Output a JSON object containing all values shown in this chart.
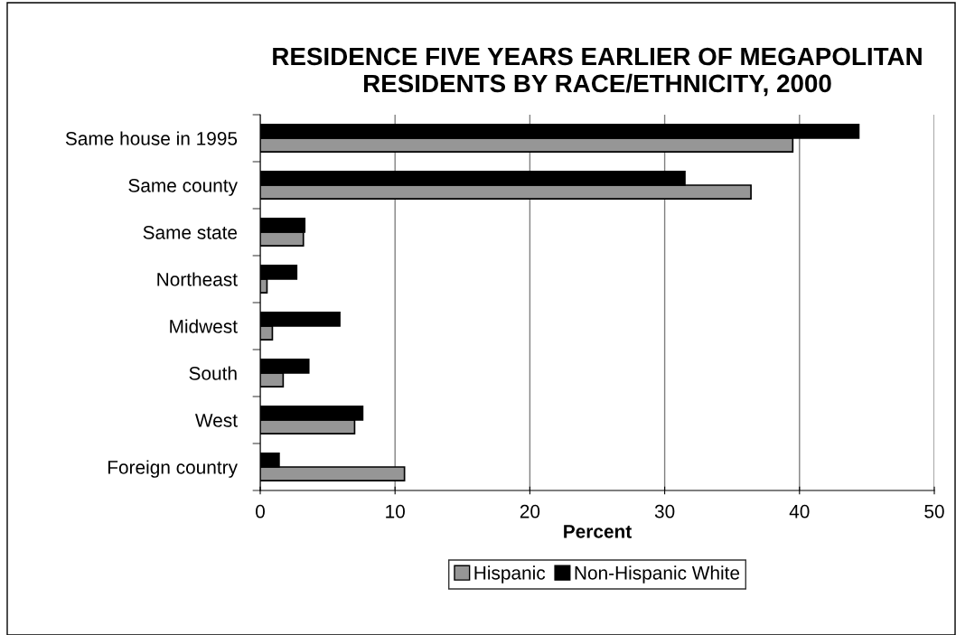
{
  "chart_data": {
    "type": "bar",
    "orientation": "horizontal",
    "title": "RESIDENCE FIVE YEARS EARLIER OF MEGAPOLITAN\nRESIDENTS BY RACE/ETHNICITY, 2000",
    "xlabel": "Percent",
    "categories": [
      "Same house in 1995",
      "Same county",
      "Same state",
      "Northeast",
      "Midwest",
      "South",
      "West",
      "Foreign country"
    ],
    "series": [
      {
        "name": "Hispanic",
        "color": "#969696",
        "values": [
          39.5,
          36.4,
          3.2,
          0.5,
          0.9,
          1.7,
          7.0,
          10.7
        ]
      },
      {
        "name": "Non-Hispanic White",
        "color": "#000000",
        "values": [
          44.4,
          31.5,
          3.3,
          2.7,
          5.9,
          3.6,
          7.6,
          1.4
        ]
      }
    ],
    "xlim": [
      0,
      50
    ],
    "xticks": [
      0,
      10,
      20,
      30,
      40,
      50
    ],
    "grid": "x",
    "legend": "bottom"
  }
}
